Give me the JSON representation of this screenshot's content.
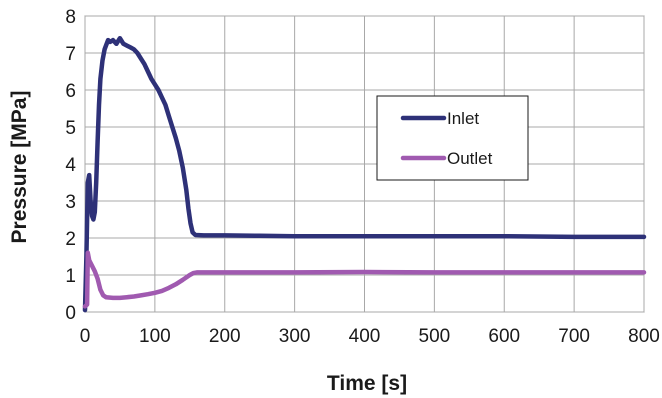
{
  "chart_data": {
    "type": "line",
    "title": "",
    "xlabel": "Time [s]",
    "ylabel": "Pressure [MPa]",
    "xlim": [
      0,
      800
    ],
    "ylim": [
      0,
      8
    ],
    "xticks": [
      0,
      100,
      200,
      300,
      400,
      500,
      600,
      700,
      800
    ],
    "yticks": [
      0,
      1,
      2,
      3,
      4,
      5,
      6,
      7,
      8
    ],
    "grid": true,
    "legend_position": "right",
    "series": [
      {
        "name": "Inlet",
        "color": "#2e3178",
        "points": [
          [
            0,
            0.05
          ],
          [
            2,
            1.5
          ],
          [
            4,
            3.5
          ],
          [
            6,
            3.7
          ],
          [
            8,
            3.0
          ],
          [
            10,
            2.6
          ],
          [
            12,
            2.5
          ],
          [
            14,
            2.7
          ],
          [
            16,
            3.5
          ],
          [
            18,
            4.6
          ],
          [
            20,
            5.6
          ],
          [
            22,
            6.3
          ],
          [
            25,
            6.8
          ],
          [
            28,
            7.1
          ],
          [
            30,
            7.2
          ],
          [
            33,
            7.35
          ],
          [
            36,
            7.3
          ],
          [
            40,
            7.35
          ],
          [
            45,
            7.25
          ],
          [
            50,
            7.4
          ],
          [
            55,
            7.25
          ],
          [
            60,
            7.2
          ],
          [
            65,
            7.15
          ],
          [
            70,
            7.1
          ],
          [
            75,
            7.0
          ],
          [
            80,
            6.85
          ],
          [
            85,
            6.7
          ],
          [
            90,
            6.5
          ],
          [
            95,
            6.3
          ],
          [
            100,
            6.15
          ],
          [
            105,
            6.0
          ],
          [
            110,
            5.8
          ],
          [
            115,
            5.6
          ],
          [
            120,
            5.3
          ],
          [
            125,
            5.0
          ],
          [
            130,
            4.7
          ],
          [
            135,
            4.35
          ],
          [
            140,
            3.9
          ],
          [
            145,
            3.3
          ],
          [
            148,
            2.8
          ],
          [
            151,
            2.4
          ],
          [
            154,
            2.15
          ],
          [
            158,
            2.08
          ],
          [
            170,
            2.07
          ],
          [
            200,
            2.07
          ],
          [
            250,
            2.06
          ],
          [
            300,
            2.05
          ],
          [
            400,
            2.05
          ],
          [
            500,
            2.05
          ],
          [
            600,
            2.05
          ],
          [
            700,
            2.03
          ],
          [
            800,
            2.03
          ]
        ]
      },
      {
        "name": "Outlet",
        "color": "#a05ab0",
        "points": [
          [
            0,
            0.15
          ],
          [
            3,
            0.2
          ],
          [
            4,
            1.6
          ],
          [
            6,
            1.4
          ],
          [
            10,
            1.25
          ],
          [
            14,
            1.1
          ],
          [
            18,
            0.9
          ],
          [
            22,
            0.6
          ],
          [
            26,
            0.45
          ],
          [
            30,
            0.4
          ],
          [
            40,
            0.38
          ],
          [
            50,
            0.38
          ],
          [
            60,
            0.4
          ],
          [
            70,
            0.42
          ],
          [
            80,
            0.45
          ],
          [
            90,
            0.48
          ],
          [
            100,
            0.52
          ],
          [
            110,
            0.57
          ],
          [
            120,
            0.65
          ],
          [
            130,
            0.75
          ],
          [
            140,
            0.87
          ],
          [
            150,
            1.0
          ],
          [
            155,
            1.05
          ],
          [
            160,
            1.07
          ],
          [
            200,
            1.07
          ],
          [
            300,
            1.07
          ],
          [
            400,
            1.08
          ],
          [
            500,
            1.07
          ],
          [
            600,
            1.07
          ],
          [
            700,
            1.07
          ],
          [
            800,
            1.07
          ]
        ]
      }
    ]
  }
}
